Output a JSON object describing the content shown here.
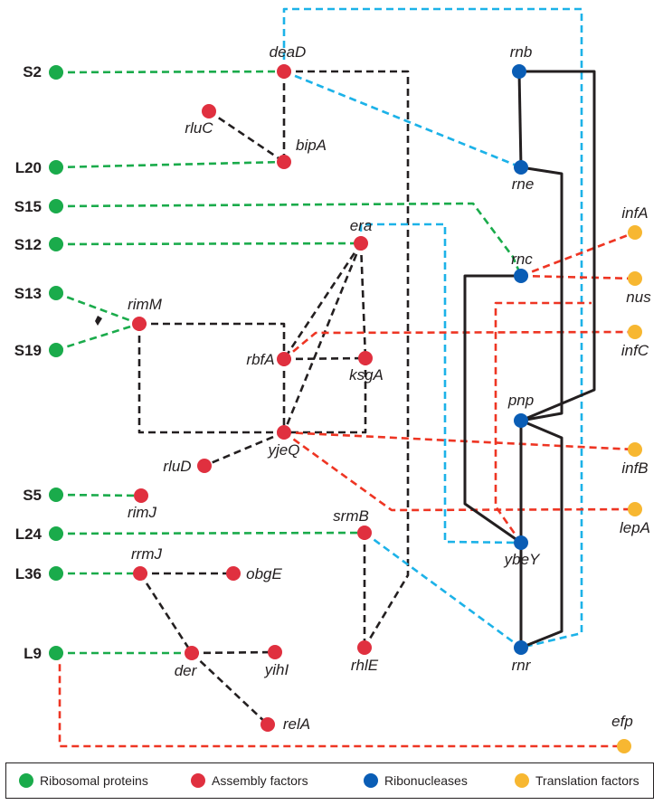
{
  "colors": {
    "ribosomal_protein": "#1aab4b",
    "assembly_factor": "#e0303f",
    "ribonuclease": "#0a5db5",
    "translation_factor": "#f7b731",
    "edge_black": "#231f20",
    "edge_blue": "#1cb2e8",
    "edge_green": "#1aab4b",
    "edge_red": "#ee3523"
  },
  "nodes": [
    {
      "id": "S2",
      "label": "S2",
      "category": "ribosomal_protein"
    },
    {
      "id": "L20",
      "label": "L20",
      "category": "ribosomal_protein"
    },
    {
      "id": "S15",
      "label": "S15",
      "category": "ribosomal_protein"
    },
    {
      "id": "S12",
      "label": "S12",
      "category": "ribosomal_protein"
    },
    {
      "id": "S13",
      "label": "S13",
      "category": "ribosomal_protein"
    },
    {
      "id": "S19",
      "label": "S19",
      "category": "ribosomal_protein"
    },
    {
      "id": "S5",
      "label": "S5",
      "category": "ribosomal_protein"
    },
    {
      "id": "L24",
      "label": "L24",
      "category": "ribosomal_protein"
    },
    {
      "id": "L36",
      "label": "L36",
      "category": "ribosomal_protein"
    },
    {
      "id": "L9",
      "label": "L9",
      "category": "ribosomal_protein"
    },
    {
      "id": "deaD",
      "label": "deaD",
      "category": "assembly_factor"
    },
    {
      "id": "rluC",
      "label": "rluC",
      "category": "assembly_factor"
    },
    {
      "id": "bipA",
      "label": "bipA",
      "category": "assembly_factor"
    },
    {
      "id": "era",
      "label": "era",
      "category": "assembly_factor"
    },
    {
      "id": "rimM",
      "label": "rimM",
      "category": "assembly_factor"
    },
    {
      "id": "rbfA",
      "label": "rbfA",
      "category": "assembly_factor"
    },
    {
      "id": "ksgA",
      "label": "ksgA",
      "category": "assembly_factor"
    },
    {
      "id": "yjeQ",
      "label": "yjeQ",
      "category": "assembly_factor"
    },
    {
      "id": "rluD",
      "label": "rluD",
      "category": "assembly_factor"
    },
    {
      "id": "rimJ",
      "label": "rimJ",
      "category": "assembly_factor"
    },
    {
      "id": "srmB",
      "label": "srmB",
      "category": "assembly_factor"
    },
    {
      "id": "rrmJ",
      "label": "rrmJ",
      "category": "assembly_factor"
    },
    {
      "id": "obgE",
      "label": "obgE",
      "category": "assembly_factor"
    },
    {
      "id": "der",
      "label": "der",
      "category": "assembly_factor"
    },
    {
      "id": "yihI",
      "label": "yihI",
      "category": "assembly_factor"
    },
    {
      "id": "rhlE",
      "label": "rhlE",
      "category": "assembly_factor"
    },
    {
      "id": "relA",
      "label": "relA",
      "category": "assembly_factor"
    },
    {
      "id": "rnb",
      "label": "rnb",
      "category": "ribonuclease"
    },
    {
      "id": "rne",
      "label": "rne",
      "category": "ribonuclease"
    },
    {
      "id": "rnc",
      "label": "rnc",
      "category": "ribonuclease"
    },
    {
      "id": "pnp",
      "label": "pnp",
      "category": "ribonuclease"
    },
    {
      "id": "ybeY",
      "label": "ybeY",
      "category": "ribonuclease"
    },
    {
      "id": "rnr",
      "label": "rnr",
      "category": "ribonuclease"
    },
    {
      "id": "infA",
      "label": "infA",
      "category": "translation_factor"
    },
    {
      "id": "nus",
      "label": "nus",
      "category": "translation_factor"
    },
    {
      "id": "infC",
      "label": "infC",
      "category": "translation_factor"
    },
    {
      "id": "infB",
      "label": "infB",
      "category": "translation_factor"
    },
    {
      "id": "lepA",
      "label": "lepA",
      "category": "translation_factor"
    },
    {
      "id": "efp",
      "label": "efp",
      "category": "translation_factor"
    }
  ],
  "edges": [
    {
      "from": "S2",
      "to": "deaD",
      "color": "green",
      "style": "dashed"
    },
    {
      "from": "L20",
      "to": "bipA",
      "color": "green",
      "style": "dashed"
    },
    {
      "from": "S15",
      "to": "rnc",
      "color": "green",
      "style": "dashed"
    },
    {
      "from": "S12",
      "to": "era",
      "color": "green",
      "style": "dashed"
    },
    {
      "from": "S13",
      "to": "rimM",
      "color": "green",
      "style": "dashed"
    },
    {
      "from": "S19",
      "to": "rimM",
      "color": "green",
      "style": "dashed"
    },
    {
      "from": "S5",
      "to": "rimJ",
      "color": "green",
      "style": "dashed"
    },
    {
      "from": "L24",
      "to": "srmB",
      "color": "green",
      "style": "dashed"
    },
    {
      "from": "L36",
      "to": "rrmJ",
      "color": "green",
      "style": "dashed"
    },
    {
      "from": "L9",
      "to": "der",
      "color": "green",
      "style": "dashed"
    },
    {
      "from": "deaD",
      "to": "bipA",
      "color": "black",
      "style": "dashed"
    },
    {
      "from": "rluC",
      "to": "bipA",
      "color": "black",
      "style": "dashed"
    },
    {
      "from": "deaD",
      "to": "rhlE",
      "color": "black",
      "style": "dashed"
    },
    {
      "from": "rimM",
      "to": "rbfA",
      "color": "black",
      "style": "dashed"
    },
    {
      "from": "rimM",
      "to": "yjeQ",
      "color": "black",
      "style": "dashed"
    },
    {
      "from": "era",
      "to": "rbfA",
      "color": "black",
      "style": "dashed"
    },
    {
      "from": "era",
      "to": "yjeQ",
      "color": "black",
      "style": "dashed"
    },
    {
      "from": "era",
      "to": "ksgA",
      "color": "black",
      "style": "dashed"
    },
    {
      "from": "rbfA",
      "to": "ksgA",
      "color": "black",
      "style": "dashed"
    },
    {
      "from": "rbfA",
      "to": "yjeQ",
      "color": "black",
      "style": "dashed"
    },
    {
      "from": "ksgA",
      "to": "yjeQ",
      "color": "black",
      "style": "dashed"
    },
    {
      "from": "yjeQ",
      "to": "rluD",
      "color": "black",
      "style": "dashed"
    },
    {
      "from": "srmB",
      "to": "rhlE",
      "color": "black",
      "style": "dashed"
    },
    {
      "from": "rrmJ",
      "to": "obgE",
      "color": "black",
      "style": "dashed"
    },
    {
      "from": "rrmJ",
      "to": "der",
      "color": "black",
      "style": "dashed"
    },
    {
      "from": "der",
      "to": "yihI",
      "color": "black",
      "style": "dashed"
    },
    {
      "from": "der",
      "to": "relA",
      "color": "black",
      "style": "dashed"
    },
    {
      "from": "deaD",
      "to": "rne",
      "color": "blue",
      "style": "dashed"
    },
    {
      "from": "deaD",
      "to": "rnr",
      "color": "blue",
      "style": "dashed"
    },
    {
      "from": "rne",
      "to": "pnp",
      "color": "blue",
      "style": "dashed"
    },
    {
      "from": "era",
      "to": "ybeY",
      "color": "blue",
      "style": "dashed"
    },
    {
      "from": "srmB",
      "to": "rnr",
      "color": "blue",
      "style": "dashed"
    },
    {
      "from": "rnc",
      "to": "infA",
      "color": "red",
      "style": "dashed"
    },
    {
      "from": "rnc",
      "to": "nus",
      "color": "red",
      "style": "dashed"
    },
    {
      "from": "rbfA",
      "to": "infC",
      "color": "red",
      "style": "dashed"
    },
    {
      "from": "yjeQ",
      "to": "infB",
      "color": "red",
      "style": "dashed"
    },
    {
      "from": "yjeQ",
      "to": "lepA",
      "color": "red",
      "style": "dashed"
    },
    {
      "from": "ybeY",
      "to": "nus",
      "color": "red",
      "style": "dashed"
    },
    {
      "from": "L9",
      "to": "efp",
      "color": "red",
      "style": "dashed"
    },
    {
      "from": "rnb",
      "to": "rne",
      "color": "black",
      "style": "solid"
    },
    {
      "from": "rnb",
      "to": "pnp",
      "color": "black",
      "style": "solid"
    },
    {
      "from": "rne",
      "to": "pnp",
      "color": "black",
      "style": "solid"
    },
    {
      "from": "rnc",
      "to": "ybeY",
      "color": "black",
      "style": "solid"
    },
    {
      "from": "pnp",
      "to": "ybeY",
      "color": "black",
      "style": "solid"
    },
    {
      "from": "pnp",
      "to": "rnr",
      "color": "black",
      "style": "solid"
    },
    {
      "from": "ybeY",
      "to": "rnr",
      "color": "black",
      "style": "solid"
    }
  ],
  "legend": [
    {
      "label": "Ribosomal proteins",
      "category": "ribosomal_protein"
    },
    {
      "label": "Assembly factors",
      "category": "assembly_factor"
    },
    {
      "label": "Ribonucleases",
      "category": "ribonuclease"
    },
    {
      "label": "Translation factors",
      "category": "translation_factor"
    }
  ]
}
